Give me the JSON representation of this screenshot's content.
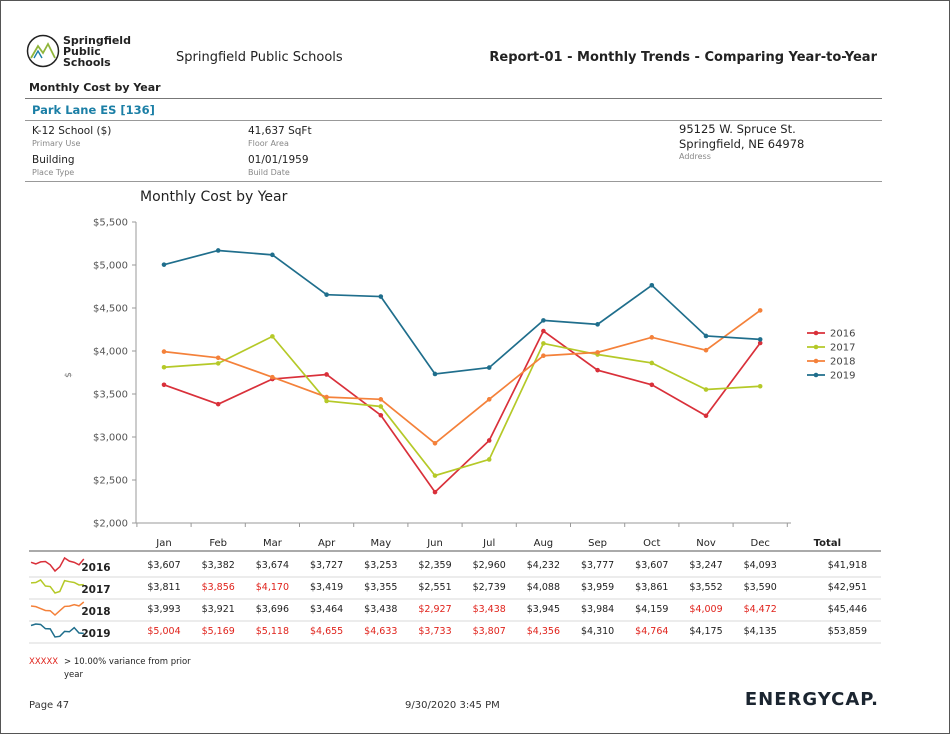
{
  "header": {
    "logo_lines": [
      "Springfield",
      "Public",
      "Schools"
    ],
    "org_name": "Springfield Public Schools",
    "report_title": "Report-01 - Monthly Trends - Comparing Year-to-Year",
    "subtitle": "Monthly Cost by Year"
  },
  "facility": {
    "name": "Park Lane ES [136]",
    "primary_use": "K-12 School  ($)",
    "primary_use_caption": "Primary Use",
    "place_type": "Building",
    "place_type_caption": "Place Type",
    "floor_area": "41,637 SqFt",
    "floor_area_caption": "Floor Area",
    "build_date": "01/01/1959",
    "build_date_caption": "Build Date",
    "address_line1": "95125 W. Spruce St.",
    "address_line2": "Springfield, NE 64978",
    "address_caption": "Address"
  },
  "chart_data": {
    "type": "line",
    "title": "Monthly Cost by Year",
    "ylabel": "$",
    "xlabel": "",
    "ylim": [
      2000,
      5500
    ],
    "yticks": [
      2000,
      2500,
      3000,
      3500,
      4000,
      4500,
      5000,
      5500
    ],
    "ytick_labels": [
      "$2,000",
      "$2,500",
      "$3,000",
      "$3,500",
      "$4,000",
      "$4,500",
      "$5,000",
      "$5,500"
    ],
    "categories": [
      "Jan",
      "Feb",
      "Mar",
      "Apr",
      "May",
      "Jun",
      "Jul",
      "Aug",
      "Sep",
      "Oct",
      "Nov",
      "Dec"
    ],
    "legend_position": "right",
    "series": [
      {
        "name": "2016",
        "color": "#d9303a",
        "values": [
          3607,
          3382,
          3674,
          3727,
          3253,
          2359,
          2960,
          4232,
          3777,
          3607,
          3247,
          4093
        ]
      },
      {
        "name": "2017",
        "color": "#b5c928",
        "values": [
          3811,
          3856,
          4170,
          3419,
          3355,
          2551,
          2739,
          4088,
          3959,
          3861,
          3552,
          3590
        ]
      },
      {
        "name": "2018",
        "color": "#f4813a",
        "values": [
          3993,
          3921,
          3696,
          3464,
          3438,
          2927,
          3438,
          3945,
          3984,
          4159,
          4009,
          4472
        ]
      },
      {
        "name": "2019",
        "color": "#1f6e8c",
        "values": [
          5004,
          5169,
          5118,
          4655,
          4633,
          3733,
          3807,
          4356,
          4310,
          4764,
          4175,
          4135
        ]
      }
    ]
  },
  "table": {
    "total_header": "Total",
    "rows": [
      {
        "year": "2016",
        "color": "#d9303a",
        "cells": [
          "$3,607",
          "$3,382",
          "$3,674",
          "$3,727",
          "$3,253",
          "$2,359",
          "$2,960",
          "$4,232",
          "$3,777",
          "$3,607",
          "$3,247",
          "$4,093"
        ],
        "flags": [
          false,
          false,
          false,
          false,
          false,
          false,
          false,
          false,
          false,
          false,
          false,
          false
        ],
        "total": "$41,918"
      },
      {
        "year": "2017",
        "color": "#b5c928",
        "cells": [
          "$3,811",
          "$3,856",
          "$4,170",
          "$3,419",
          "$3,355",
          "$2,551",
          "$2,739",
          "$4,088",
          "$3,959",
          "$3,861",
          "$3,552",
          "$3,590"
        ],
        "flags": [
          false,
          true,
          true,
          false,
          false,
          false,
          false,
          false,
          false,
          false,
          false,
          false
        ],
        "total": "$42,951"
      },
      {
        "year": "2018",
        "color": "#f4813a",
        "cells": [
          "$3,993",
          "$3,921",
          "$3,696",
          "$3,464",
          "$3,438",
          "$2,927",
          "$3,438",
          "$3,945",
          "$3,984",
          "$4,159",
          "$4,009",
          "$4,472"
        ],
        "flags": [
          false,
          false,
          false,
          false,
          false,
          true,
          true,
          false,
          false,
          false,
          true,
          true
        ],
        "total": "$45,446"
      },
      {
        "year": "2019",
        "color": "#1f6e8c",
        "cells": [
          "$5,004",
          "$5,169",
          "$5,118",
          "$4,655",
          "$4,633",
          "$3,733",
          "$3,807",
          "$4,356",
          "$4,310",
          "$4,764",
          "$4,175",
          "$4,135"
        ],
        "flags": [
          true,
          true,
          true,
          true,
          true,
          true,
          true,
          true,
          false,
          true,
          false,
          false
        ],
        "total": "$53,859"
      }
    ],
    "variance_color": "#e0231c",
    "legend_marker": "XXXXX",
    "legend_text_line1": "> 10.00% variance from prior",
    "legend_text_line2": "year"
  },
  "footer": {
    "page": "Page 47",
    "timestamp": "9/30/2020 3:45 PM",
    "brand": "ENERGYCAP."
  }
}
